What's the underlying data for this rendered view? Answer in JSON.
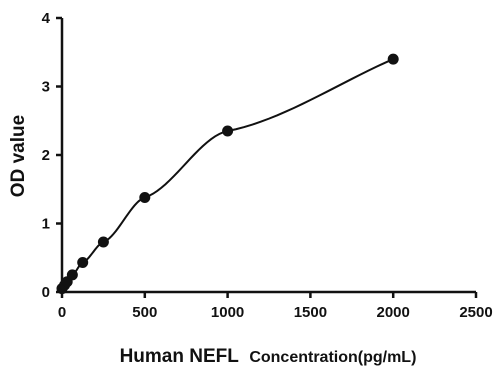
{
  "chart_data": {
    "type": "scatter",
    "xlabel": "Human NEFL Concentration(pg/mL)",
    "xlabel_main": "Human NEFL",
    "xlabel_sub": "Concentration(pg/mL)",
    "ylabel": "OD value",
    "xlim": [
      0,
      2500
    ],
    "ylim": [
      0,
      4
    ],
    "x_ticks": [
      0,
      500,
      1000,
      1500,
      2000,
      2500
    ],
    "y_ticks": [
      0,
      1,
      2,
      3,
      4
    ],
    "grid": false,
    "series": [
      {
        "points": [
          {
            "x": 0,
            "y": 0.05
          },
          {
            "x": 15.6,
            "y": 0.1
          },
          {
            "x": 31.3,
            "y": 0.15
          },
          {
            "x": 62.5,
            "y": 0.25
          },
          {
            "x": 125,
            "y": 0.43
          },
          {
            "x": 250,
            "y": 0.73
          },
          {
            "x": 500,
            "y": 1.38
          },
          {
            "x": 1000,
            "y": 2.35
          },
          {
            "x": 2000,
            "y": 3.4
          }
        ],
        "fit": "smooth-curve"
      }
    ]
  }
}
